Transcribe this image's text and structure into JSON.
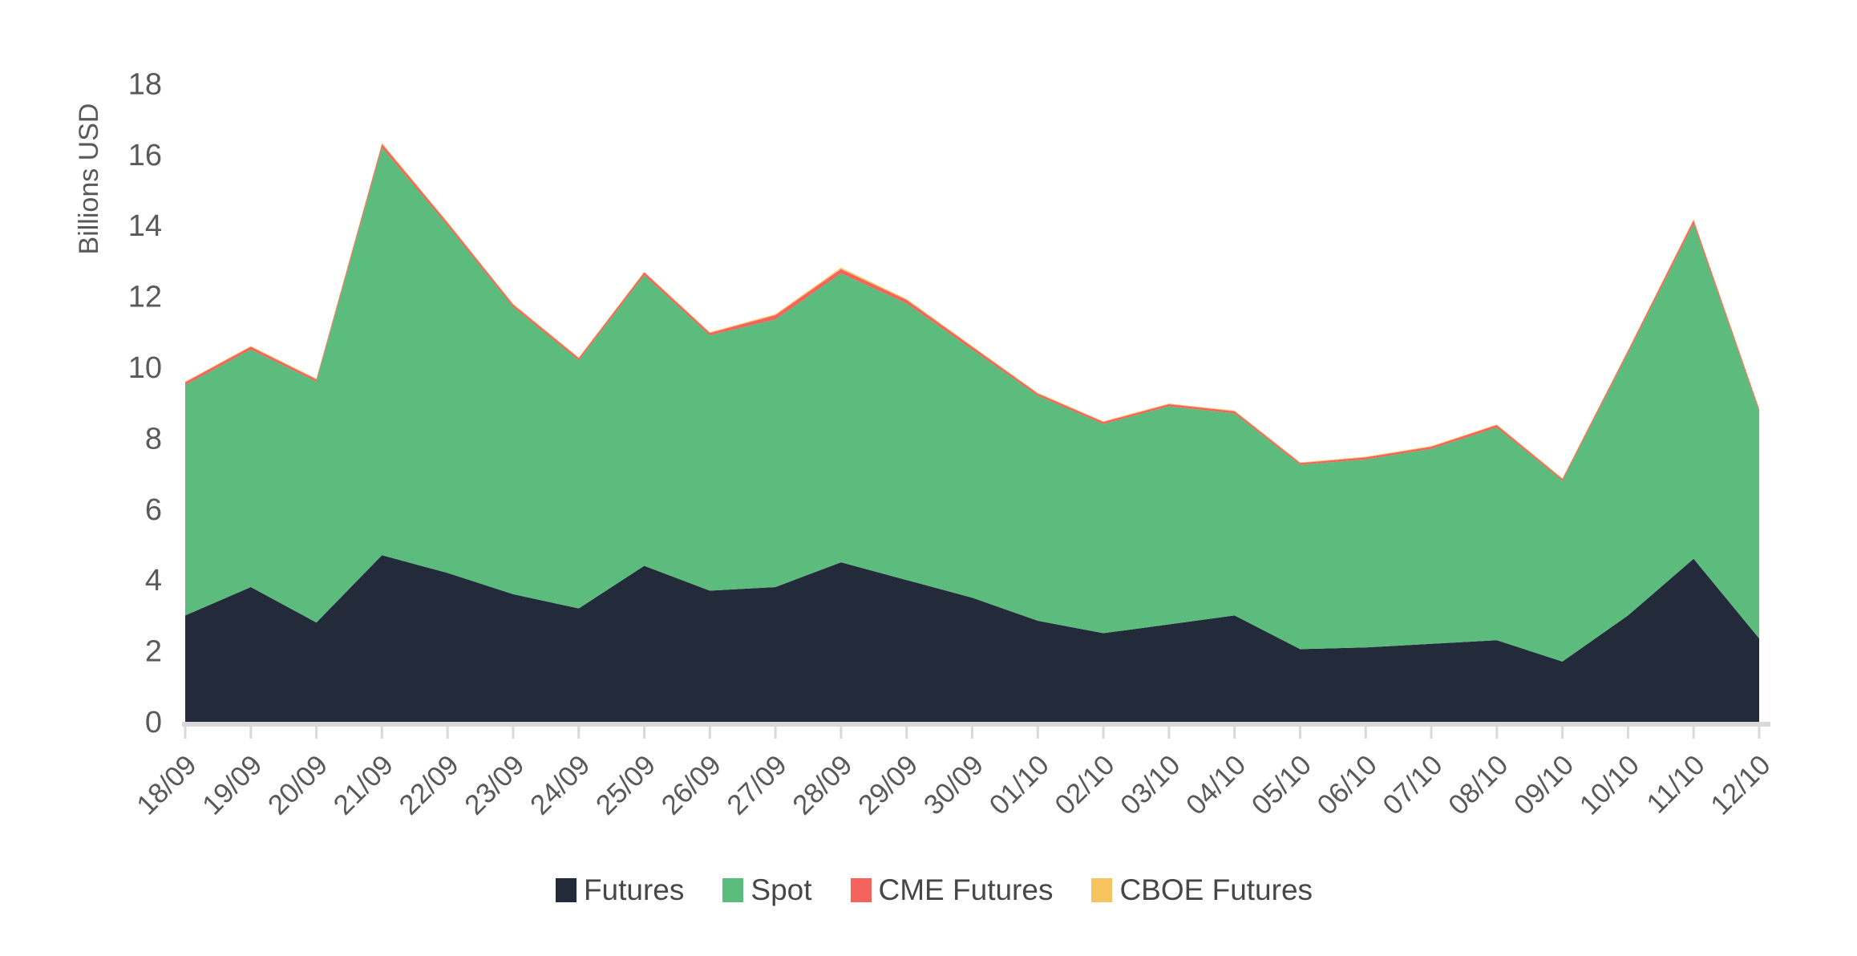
{
  "chart_data": {
    "type": "area",
    "stacked": true,
    "title": "",
    "ylabel": "Billions USD",
    "xlabel": "",
    "ylim": [
      0,
      18
    ],
    "ytick_step": 2,
    "yticks": [
      "0",
      "2",
      "4",
      "6",
      "8",
      "10",
      "12",
      "14",
      "16",
      "18"
    ],
    "grid": false,
    "legend_position": "bottom",
    "axis_color": "#D9D9D9",
    "label_color": "#595959",
    "legend_text_color": "#474747",
    "background_color": "#FFFFFF",
    "categories": [
      "18/09",
      "19/09",
      "20/09",
      "21/09",
      "22/09",
      "23/09",
      "24/09",
      "25/09",
      "26/09",
      "27/09",
      "28/09",
      "29/09",
      "30/09",
      "01/10",
      "02/10",
      "03/10",
      "04/10",
      "05/10",
      "06/10",
      "07/10",
      "08/10",
      "09/10",
      "10/10",
      "11/10",
      "12/10"
    ],
    "series": [
      {
        "name": "Futures",
        "color": "#232B3A",
        "values": [
          3.0,
          3.8,
          2.8,
          4.7,
          4.2,
          3.6,
          3.2,
          4.4,
          3.7,
          3.8,
          4.5,
          4.0,
          3.5,
          2.85,
          2.5,
          2.75,
          3.0,
          2.05,
          2.1,
          2.2,
          2.3,
          1.7,
          3.0,
          4.6,
          2.35
        ]
      },
      {
        "name": "Spot",
        "color": "#5BBC7D",
        "values": [
          6.5,
          6.7,
          6.8,
          11.5,
          9.8,
          8.1,
          7.0,
          8.2,
          7.2,
          7.55,
          8.15,
          7.8,
          7.0,
          6.35,
          5.9,
          6.15,
          5.7,
          5.2,
          5.3,
          5.5,
          6.0,
          5.1,
          7.4,
          9.45,
          6.4
        ]
      },
      {
        "name": "CME Futures",
        "color": "#F4645C",
        "values": [
          0.08,
          0.08,
          0.06,
          0.1,
          0.08,
          0.07,
          0.06,
          0.08,
          0.07,
          0.12,
          0.12,
          0.1,
          0.08,
          0.06,
          0.06,
          0.06,
          0.06,
          0.05,
          0.06,
          0.06,
          0.07,
          0.05,
          0.07,
          0.1,
          0.07
        ]
      },
      {
        "name": "CBOE Futures",
        "color": "#F7C45F",
        "values": [
          0.02,
          0.02,
          0.02,
          0.03,
          0.02,
          0.02,
          0.02,
          0.02,
          0.02,
          0.03,
          0.04,
          0.03,
          0.02,
          0.02,
          0.02,
          0.02,
          0.02,
          0.02,
          0.02,
          0.02,
          0.02,
          0.02,
          0.02,
          0.03,
          0.02
        ]
      }
    ],
    "totals_note": "top line = sum of all four series per date"
  }
}
